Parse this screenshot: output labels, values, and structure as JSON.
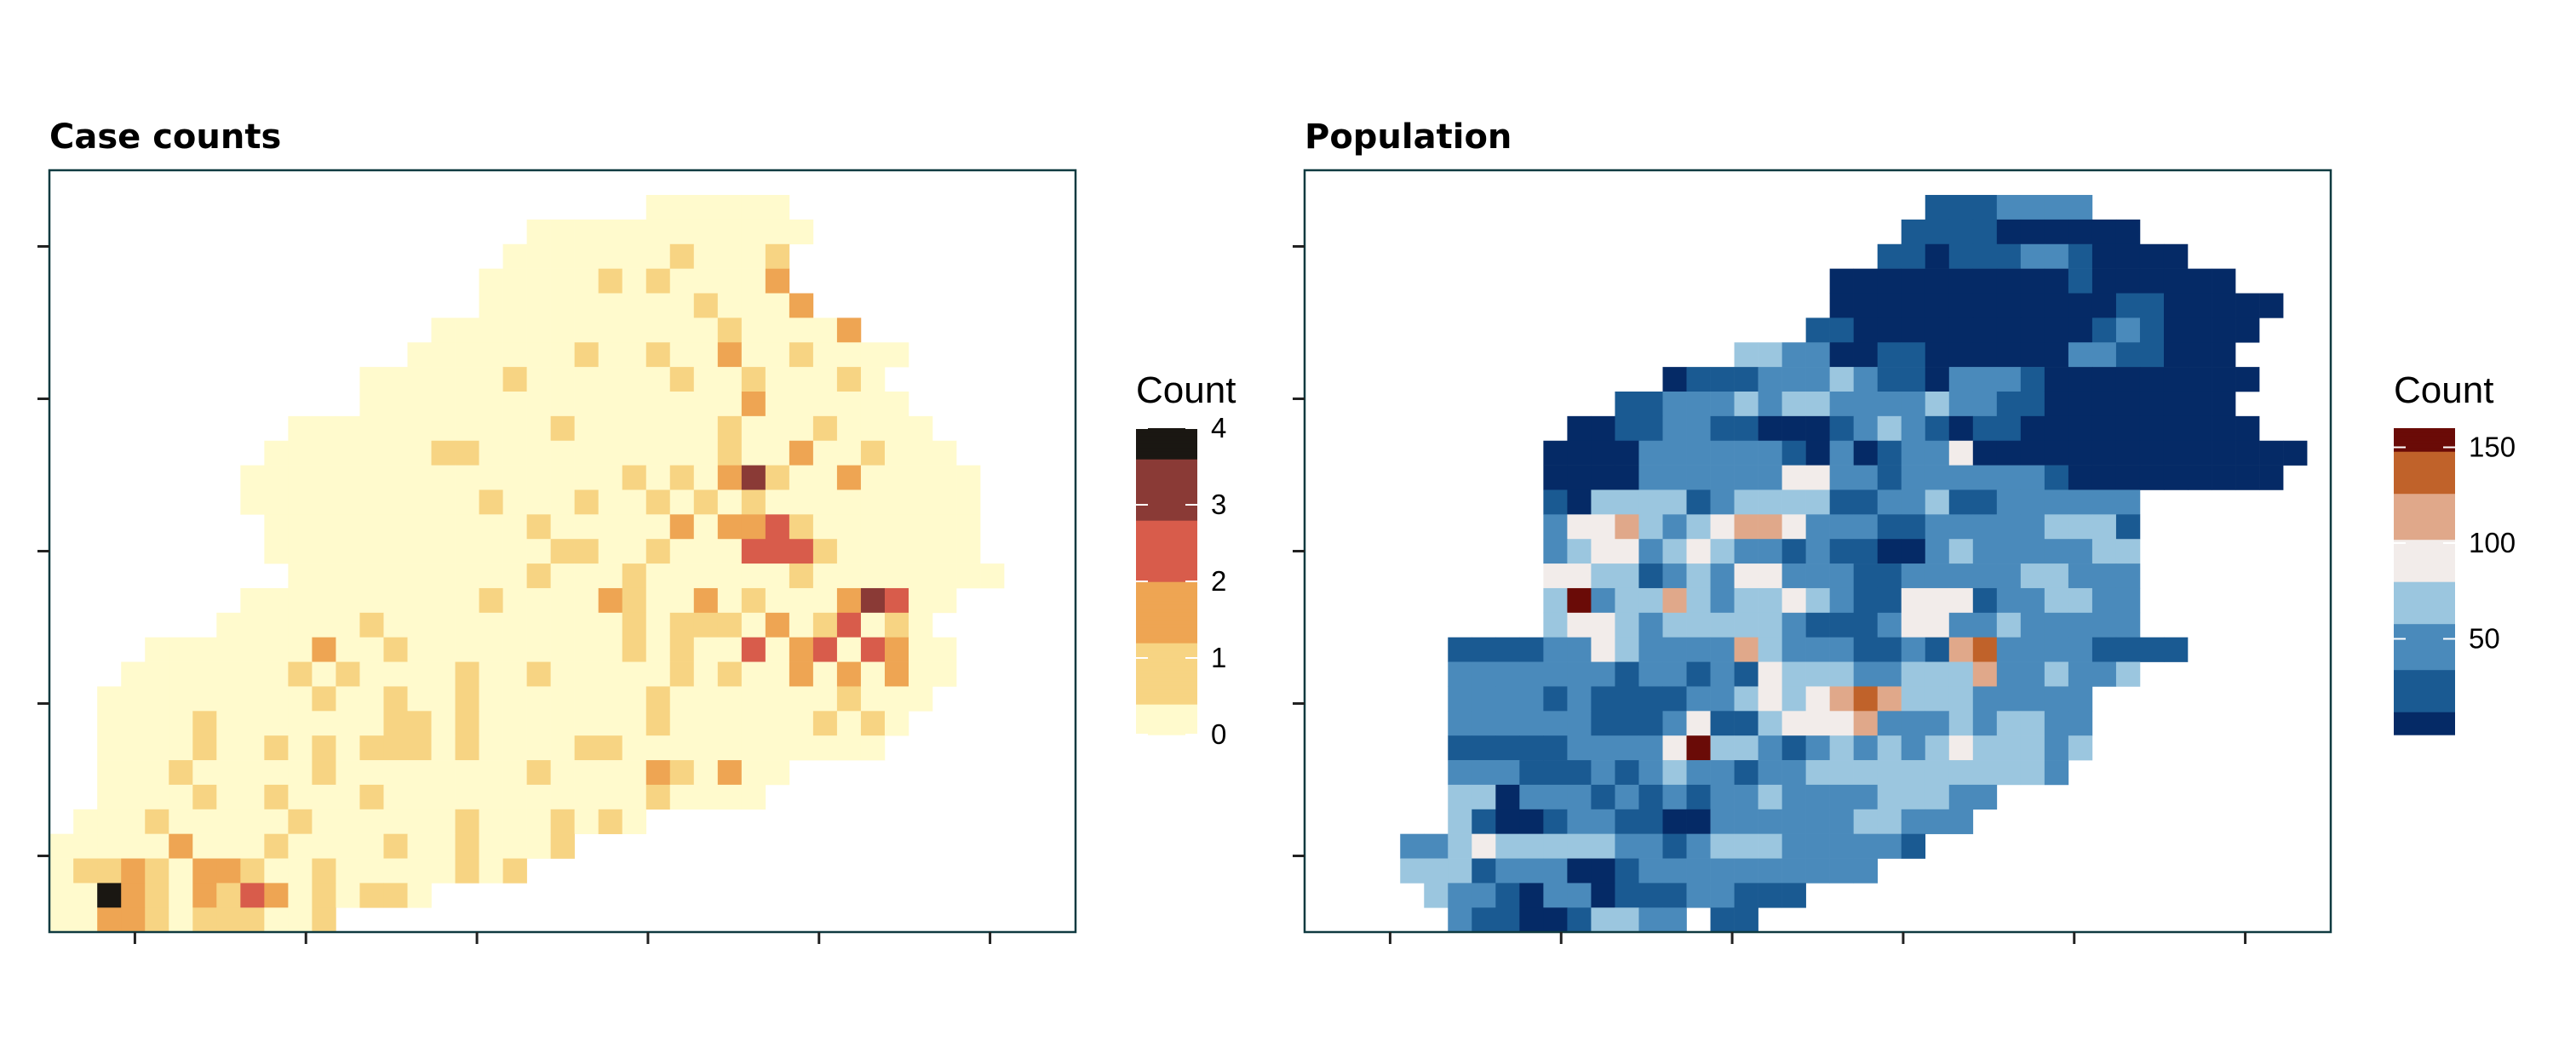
{
  "chart_data": [
    {
      "type": "heatmap",
      "title": "Case counts",
      "legend": {
        "title": "Count",
        "placement": "right",
        "min": 0,
        "max": 4,
        "breaks": [
          0,
          1,
          2,
          3,
          4
        ],
        "labels": [
          "0",
          "1",
          "2",
          "3",
          "4"
        ]
      },
      "colors": [
        "#fffacd",
        "#f7d483",
        "#eea553",
        "#d85c4b",
        "#8a3a36",
        "#1a1712"
      ],
      "axes": {
        "x_ticks": 6,
        "y_ticks": 5,
        "tick_labels": "none"
      },
      "grid": false,
      "grid_shape": [
        31,
        43
      ],
      "rows": [
        "...................................",
        ".........................000000....",
        "....................000000000000...",
        "...................000000000001....",
        "..................0000000000000....",
        "..................00000000000000...",
        "................000000000000000000.",
        "...............000000000000000000000",
        ".............0000000000000000000000.",
        ".............00000000000000000000000",
        "..........000000000000000000000000000",
        ".........00000000000000000000000000000",
        "........0000000000000000000000000000000",
        "........0000000000000000000000000000000",
        ".........000000000000000000000000000000",
        ".........000000000000000000000000000000",
        "..........000000000000000000000000000000",
        "........000000000000000000000000000000..",
        ".......000000000000000000000000000000..",
        "....0000000000000000000000000000000000..",
        "...00000000000000000000000000000000000..",
        "..00000000000000000000000000000000000...",
        "..0000000000000000000000000000000000....",
        "..000000000000000000000000000000000.....",
        "..00000000000000000000000000000.........",
        "..0000000000000000000000000000..........",
        ".000000000000000000000000..............",
        "0000000000000000000000.................",
        "00000000000000000000...................",
        "0000000000000000.......................",
        "000000000000..........................."
      ],
      "hot": [
        [
          1,
          24,
          1
        ],
        [
          3,
          26,
          1
        ],
        [
          4,
          23,
          1
        ],
        [
          4,
          25,
          1
        ],
        [
          4,
          30,
          2
        ],
        [
          5,
          27,
          1
        ],
        [
          5,
          31,
          2
        ],
        [
          6,
          28,
          1
        ],
        [
          6,
          33,
          2
        ],
        [
          7,
          22,
          1
        ],
        [
          7,
          25,
          1
        ],
        [
          7,
          28,
          2
        ],
        [
          7,
          31,
          1
        ],
        [
          8,
          19,
          1
        ],
        [
          8,
          26,
          1
        ],
        [
          8,
          29,
          1
        ],
        [
          8,
          33,
          1
        ],
        [
          9,
          29,
          2
        ],
        [
          10,
          21,
          1
        ],
        [
          10,
          28,
          1
        ],
        [
          10,
          32,
          1
        ],
        [
          11,
          16,
          1
        ],
        [
          11,
          17,
          1
        ],
        [
          11,
          28,
          1
        ],
        [
          11,
          31,
          2
        ],
        [
          11,
          34,
          1
        ],
        [
          12,
          24,
          1
        ],
        [
          12,
          26,
          1
        ],
        [
          12,
          28,
          2
        ],
        [
          12,
          29,
          4
        ],
        [
          12,
          30,
          1
        ],
        [
          12,
          33,
          2
        ],
        [
          13,
          18,
          1
        ],
        [
          13,
          22,
          1
        ],
        [
          13,
          25,
          1
        ],
        [
          13,
          27,
          1
        ],
        [
          13,
          29,
          1
        ],
        [
          14,
          20,
          1
        ],
        [
          14,
          26,
          2
        ],
        [
          14,
          28,
          2
        ],
        [
          14,
          29,
          2
        ],
        [
          14,
          30,
          3
        ],
        [
          14,
          31,
          1
        ],
        [
          15,
          21,
          1
        ],
        [
          15,
          22,
          1
        ],
        [
          15,
          25,
          1
        ],
        [
          15,
          29,
          3
        ],
        [
          15,
          30,
          3
        ],
        [
          15,
          31,
          3
        ],
        [
          15,
          32,
          1
        ],
        [
          16,
          20,
          1
        ],
        [
          16,
          24,
          1
        ],
        [
          16,
          31,
          1
        ],
        [
          17,
          18,
          1
        ],
        [
          17,
          23,
          2
        ],
        [
          17,
          24,
          1
        ],
        [
          17,
          27,
          2
        ],
        [
          17,
          29,
          1
        ],
        [
          17,
          33,
          2
        ],
        [
          17,
          34,
          4
        ],
        [
          17,
          35,
          3
        ],
        [
          18,
          13,
          1
        ],
        [
          18,
          24,
          1
        ],
        [
          18,
          26,
          1
        ],
        [
          18,
          27,
          1
        ],
        [
          18,
          28,
          1
        ],
        [
          18,
          30,
          2
        ],
        [
          18,
          32,
          1
        ],
        [
          18,
          33,
          3
        ],
        [
          18,
          35,
          1
        ],
        [
          19,
          11,
          2
        ],
        [
          19,
          14,
          1
        ],
        [
          19,
          24,
          1
        ],
        [
          19,
          26,
          1
        ],
        [
          19,
          29,
          3
        ],
        [
          19,
          31,
          2
        ],
        [
          19,
          32,
          3
        ],
        [
          19,
          34,
          3
        ],
        [
          19,
          35,
          2
        ],
        [
          20,
          10,
          1
        ],
        [
          20,
          12,
          1
        ],
        [
          20,
          17,
          1
        ],
        [
          20,
          20,
          1
        ],
        [
          20,
          26,
          1
        ],
        [
          20,
          28,
          1
        ],
        [
          20,
          31,
          2
        ],
        [
          20,
          33,
          2
        ],
        [
          20,
          35,
          2
        ],
        [
          21,
          11,
          1
        ],
        [
          21,
          14,
          1
        ],
        [
          21,
          17,
          1
        ],
        [
          21,
          25,
          1
        ],
        [
          21,
          33,
          1
        ],
        [
          22,
          6,
          1
        ],
        [
          22,
          14,
          1
        ],
        [
          22,
          15,
          1
        ],
        [
          22,
          17,
          1
        ],
        [
          22,
          25,
          1
        ],
        [
          22,
          32,
          1
        ],
        [
          22,
          34,
          1
        ],
        [
          23,
          6,
          1
        ],
        [
          23,
          9,
          1
        ],
        [
          23,
          11,
          1
        ],
        [
          23,
          13,
          1
        ],
        [
          23,
          14,
          1
        ],
        [
          23,
          15,
          1
        ],
        [
          23,
          17,
          1
        ],
        [
          23,
          22,
          1
        ],
        [
          23,
          23,
          1
        ],
        [
          24,
          5,
          1
        ],
        [
          24,
          11,
          1
        ],
        [
          24,
          20,
          1
        ],
        [
          24,
          25,
          2
        ],
        [
          24,
          26,
          1
        ],
        [
          24,
          28,
          2
        ],
        [
          25,
          6,
          1
        ],
        [
          25,
          9,
          1
        ],
        [
          25,
          13,
          1
        ],
        [
          25,
          25,
          1
        ],
        [
          26,
          4,
          1
        ],
        [
          26,
          10,
          1
        ],
        [
          26,
          17,
          1
        ],
        [
          26,
          21,
          1
        ],
        [
          26,
          23,
          1
        ],
        [
          27,
          5,
          2
        ],
        [
          27,
          9,
          1
        ],
        [
          27,
          14,
          1
        ],
        [
          27,
          17,
          1
        ],
        [
          27,
          21,
          1
        ],
        [
          27,
          24,
          1
        ],
        [
          28,
          1,
          1
        ],
        [
          28,
          2,
          1
        ],
        [
          28,
          3,
          2
        ],
        [
          28,
          4,
          1
        ],
        [
          28,
          6,
          2
        ],
        [
          28,
          7,
          2
        ],
        [
          28,
          8,
          1
        ],
        [
          28,
          11,
          1
        ],
        [
          28,
          17,
          1
        ],
        [
          28,
          19,
          1
        ],
        [
          28,
          26,
          1
        ],
        [
          28,
          27,
          1
        ],
        [
          29,
          2,
          5
        ],
        [
          29,
          3,
          2
        ],
        [
          29,
          4,
          1
        ],
        [
          29,
          6,
          2
        ],
        [
          29,
          7,
          1
        ],
        [
          29,
          8,
          3
        ],
        [
          29,
          9,
          2
        ],
        [
          29,
          11,
          1
        ],
        [
          29,
          13,
          1
        ],
        [
          29,
          14,
          1
        ],
        [
          29,
          18,
          2
        ],
        [
          30,
          2,
          2
        ],
        [
          30,
          3,
          2
        ],
        [
          30,
          4,
          1
        ],
        [
          30,
          6,
          1
        ],
        [
          30,
          7,
          1
        ],
        [
          30,
          8,
          1
        ],
        [
          30,
          11,
          1
        ]
      ]
    },
    {
      "type": "heatmap",
      "title": "Population",
      "legend": {
        "title": "Count",
        "placement": "right",
        "min": 0,
        "max": 160,
        "breaks": [
          50,
          100,
          150
        ],
        "labels": [
          "50",
          "100",
          "150"
        ]
      },
      "colors": [
        "#052a66",
        "#1a5a92",
        "#4a8abb",
        "#9bc6df",
        "#f2ecea",
        "#e0a88a",
        "#c0622a",
        "#6a0b07"
      ],
      "axes": {
        "x_ticks": 6,
        "y_ticks": 5,
        "tick_labels": "none"
      },
      "grid": false,
      "grid_shape": [
        31,
        43
      ],
      "rows": [
        "...................................",
        "..........................1112222..",
        ".........................1111000000.",
        "........................1101112210000",
        "......................00000000001000000",
        "......................0000000000001100000",
        ".....................1100000000001210000",
        "..................332200110000002211000",
        "...............0111222321102221000000000",
        ".............11222323322223221100000000",
        "...........00112211000123210110000000000",
        "..........00002222221020122400000000000000",
        "..........0000222222442212222221000000000",
        "..........1033331233331122311222222......",
        "..........2445323455422211222223331......",
        "..........2344234322121100232222233......",
        "..........4433123244222112222233222......",
        "..........3723353233432114441223322.....",
        "..........3443233333211124422322222.....",
        "......1111224322225322211215622221111....",
        "......22222221221214333223335223223.....",
        "......222212111122343456533322222.....",
        "......222222111241134445222323322.....",
        "......111112222473321232323433323.....",
        "......22211121232212233333333332.....",
        "......33022212121223222233322.......",
        "......3100122110022222233222........",
        "....2234333332212333222221..........",
        "....33312220012222222222...........",
        ".....3221022011122111...............",
        "......2110013322.11................."
      ]
    }
  ]
}
